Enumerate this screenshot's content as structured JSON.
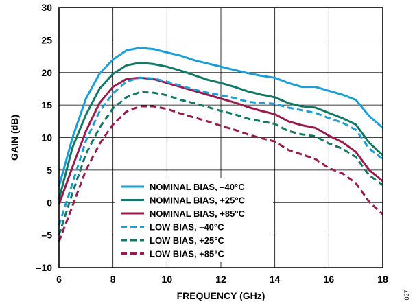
{
  "chart_data": {
    "type": "line",
    "title": "",
    "xlabel": "FREQUENCY (GHz)",
    "ylabel": "GAIN (dB)",
    "xlim": [
      6,
      18
    ],
    "ylim": [
      -10,
      30
    ],
    "x_ticks": [
      "6",
      "8",
      "10",
      "12",
      "14",
      "16",
      "18"
    ],
    "y_ticks": [
      "–10",
      "–5",
      "0",
      "5",
      "10",
      "15",
      "20",
      "25",
      "30"
    ],
    "grid": true,
    "legend_position": "bottom-center",
    "figure_id": "027",
    "series": [
      {
        "name": "NOMINAL BIAS, –40°C",
        "color": "#1a9fd9",
        "dash": "solid",
        "x": [
          6,
          6.5,
          7,
          7.5,
          8,
          8.5,
          9,
          9.5,
          10,
          10.5,
          11,
          11.5,
          12,
          12.5,
          13,
          13.5,
          14,
          14.5,
          15,
          15.5,
          16,
          16.5,
          17,
          17.5,
          18
        ],
        "y": [
          2.5,
          10,
          16,
          19.8,
          22,
          23.4,
          23.8,
          23.6,
          23.1,
          22.6,
          21.9,
          21.4,
          20.9,
          20.4,
          19.9,
          19.5,
          19.2,
          18.4,
          17.8,
          17.8,
          17.2,
          16.6,
          15.8,
          13.3,
          11.5
        ]
      },
      {
        "name": "NOMINAL BIAS, +25°C",
        "color": "#137865",
        "dash": "solid",
        "x": [
          6,
          6.5,
          7,
          7.5,
          8,
          8.5,
          9,
          9.5,
          10,
          10.5,
          11,
          11.5,
          12,
          12.5,
          13,
          13.5,
          14,
          14.5,
          15,
          15.5,
          16,
          16.5,
          17,
          17.5,
          18
        ],
        "y": [
          0.5,
          8.5,
          13.5,
          17.5,
          19.8,
          21.1,
          21.5,
          21.3,
          20.9,
          20.3,
          19.6,
          18.9,
          18.4,
          17.8,
          17.1,
          16.6,
          16.2,
          15.3,
          14.8,
          14.6,
          13.8,
          13.0,
          12.0,
          9.2,
          7.3
        ]
      },
      {
        "name": "NOMINAL BIAS, +85°C",
        "color": "#9b1b4e",
        "dash": "solid",
        "x": [
          6,
          6.5,
          7,
          7.5,
          8,
          8.5,
          9,
          9.5,
          10,
          10.5,
          11,
          11.5,
          12,
          12.5,
          13,
          13.5,
          14,
          14.5,
          15,
          15.5,
          16,
          16.5,
          17,
          17.5,
          18
        ],
        "y": [
          -0.3,
          5.5,
          11,
          15.3,
          17.8,
          19.0,
          19.2,
          19.0,
          18.4,
          17.8,
          17.2,
          16.6,
          16.0,
          15.4,
          14.7,
          14.1,
          13.6,
          12.5,
          11.9,
          11.5,
          10.3,
          9.3,
          7.8,
          5.0,
          3.3
        ]
      },
      {
        "name": "LOW BIAS, –40°C",
        "color": "#1a9fd9",
        "dash": "dashed",
        "x": [
          6,
          6.5,
          7,
          7.5,
          8,
          8.5,
          9,
          9.5,
          10,
          10.5,
          11,
          11.5,
          12,
          12.5,
          13,
          13.5,
          14,
          14.5,
          15,
          15.5,
          16,
          16.5,
          17,
          17.5,
          18
        ],
        "y": [
          -3.5,
          3,
          9.5,
          14,
          16.8,
          18.6,
          19.2,
          19.1,
          18.6,
          18.0,
          17.4,
          16.9,
          16.5,
          16.1,
          15.5,
          15.3,
          15.2,
          14.6,
          14.2,
          13.8,
          13.0,
          12.3,
          11.2,
          8.3,
          6.7
        ]
      },
      {
        "name": "LOW BIAS, +25°C",
        "color": "#137865",
        "dash": "dashed",
        "x": [
          6,
          6.5,
          7,
          7.5,
          8,
          8.5,
          9,
          9.5,
          10,
          10.5,
          11,
          11.5,
          12,
          12.5,
          13,
          13.5,
          14,
          14.5,
          15,
          15.5,
          16,
          16.5,
          17,
          17.5,
          18
        ],
        "y": [
          -5,
          1.5,
          7.5,
          11.5,
          14.5,
          16.2,
          17.0,
          16.9,
          16.5,
          15.8,
          15.3,
          14.7,
          14.1,
          13.6,
          12.9,
          12.5,
          12.1,
          11.0,
          10.5,
          10.2,
          9.1,
          8.3,
          7.0,
          4.2,
          2.7
        ]
      },
      {
        "name": "LOW BIAS, +85°C",
        "color": "#9b1b4e",
        "dash": "dashed",
        "x": [
          6,
          6.5,
          7,
          7.5,
          8,
          8.5,
          9,
          9.5,
          10,
          10.5,
          11,
          11.5,
          12,
          12.5,
          13,
          13.5,
          14,
          14.5,
          15,
          15.5,
          16,
          16.5,
          17,
          17.5,
          18
        ],
        "y": [
          -6,
          -0.5,
          5,
          9,
          12,
          14,
          14.8,
          14.8,
          14.4,
          13.7,
          13.1,
          12.5,
          11.8,
          11.2,
          10.5,
          9.9,
          9.4,
          8.1,
          7.4,
          6.7,
          5.3,
          4.5,
          3.0,
          0.1,
          -1.8
        ]
      }
    ]
  }
}
